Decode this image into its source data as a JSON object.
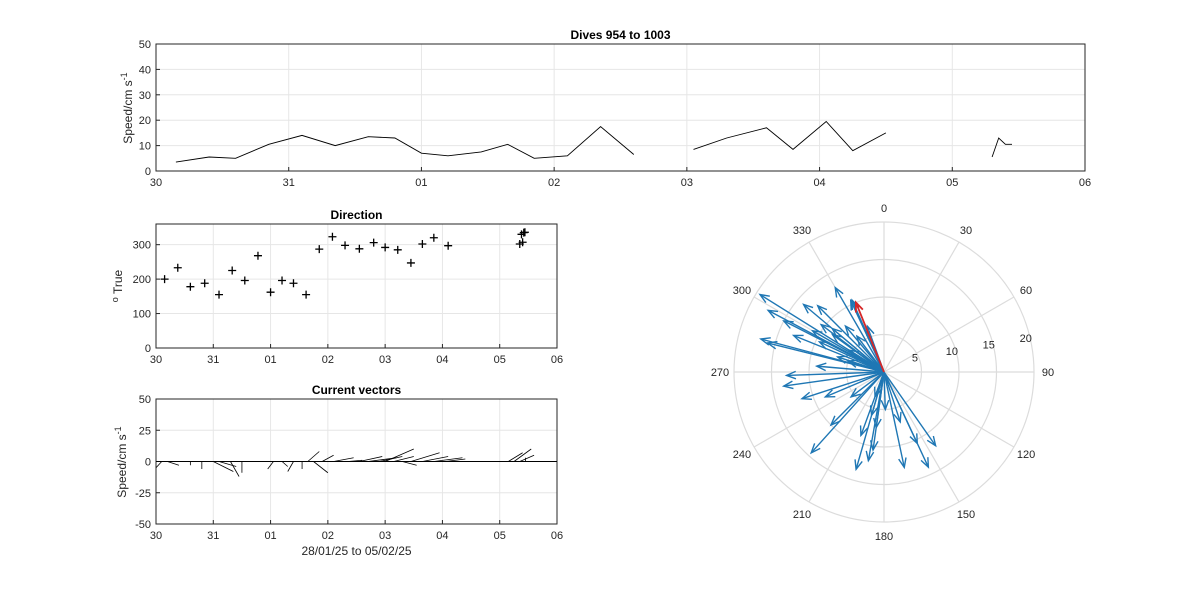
{
  "chart_data": [
    {
      "type": "line",
      "title": "Dives 954 to 1003",
      "xlabel": "",
      "ylabel": "Speed/cm s",
      "ylabel_superscript": "-1",
      "xlim": [
        0,
        7
      ],
      "ylim": [
        0,
        50
      ],
      "xticks": [
        0,
        1,
        2,
        3,
        4,
        5,
        6,
        7
      ],
      "xticklabels": [
        "30",
        "31",
        "01",
        "02",
        "03",
        "04",
        "05",
        "06"
      ],
      "yticks": [
        0,
        10,
        20,
        30,
        40,
        50
      ],
      "grid": true,
      "series": [
        {
          "color": "#000000",
          "segments": [
            [
              [
                0.15,
                3.5
              ],
              [
                0.4,
                5.5
              ],
              [
                0.6,
                5.0
              ],
              [
                0.85,
                10.5
              ],
              [
                1.1,
                14.0
              ],
              [
                1.35,
                10.0
              ],
              [
                1.6,
                13.5
              ],
              [
                1.8,
                13.0
              ],
              [
                2.0,
                7.0
              ],
              [
                2.2,
                6.0
              ],
              [
                2.45,
                7.5
              ],
              [
                2.65,
                10.5
              ],
              [
                2.85,
                5.0
              ],
              [
                3.1,
                6.0
              ],
              [
                3.35,
                17.5
              ],
              [
                3.6,
                6.5
              ]
            ],
            [
              [
                4.05,
                8.5
              ],
              [
                4.3,
                13.0
              ],
              [
                4.6,
                17.0
              ],
              [
                4.8,
                8.5
              ],
              [
                5.05,
                19.5
              ],
              [
                5.25,
                8.0
              ],
              [
                5.5,
                15.0
              ]
            ],
            [
              [
                6.3,
                5.5
              ],
              [
                6.35,
                13.0
              ],
              [
                6.4,
                10.5
              ],
              [
                6.45,
                10.5
              ]
            ]
          ]
        }
      ]
    },
    {
      "type": "scatter",
      "title": "Direction",
      "xlabel": "",
      "ylabel": "True",
      "ylabel_prefix": "o",
      "xlim": [
        0,
        7
      ],
      "ylim": [
        0,
        360
      ],
      "xticks": [
        0,
        1,
        2,
        3,
        4,
        5,
        6,
        7
      ],
      "xticklabels": [
        "30",
        "31",
        "01",
        "02",
        "03",
        "04",
        "05",
        "06"
      ],
      "yticks": [
        0,
        100,
        200,
        300
      ],
      "grid": true,
      "marker": "+",
      "points": [
        [
          0.15,
          200
        ],
        [
          0.38,
          233
        ],
        [
          0.6,
          178
        ],
        [
          0.85,
          188
        ],
        [
          1.1,
          155
        ],
        [
          1.33,
          225
        ],
        [
          1.55,
          196
        ],
        [
          1.78,
          268
        ],
        [
          2.0,
          162
        ],
        [
          2.2,
          196
        ],
        [
          2.4,
          188
        ],
        [
          2.62,
          155
        ],
        [
          2.85,
          287
        ],
        [
          3.08,
          323
        ],
        [
          3.3,
          298
        ],
        [
          3.55,
          288
        ],
        [
          3.8,
          306
        ],
        [
          4.0,
          292
        ],
        [
          4.22,
          285
        ],
        [
          4.45,
          247
        ],
        [
          4.65,
          302
        ],
        [
          4.85,
          320
        ],
        [
          5.1,
          297
        ],
        [
          6.35,
          302
        ],
        [
          6.38,
          330
        ],
        [
          6.4,
          307
        ],
        [
          6.42,
          335
        ],
        [
          6.44,
          336
        ]
      ]
    },
    {
      "type": "line",
      "subtype": "stick-plot",
      "title": "Current vectors",
      "xlabel": "28/01/25 to 05/02/25",
      "ylabel": "Speed/cm s",
      "ylabel_superscript": "-1",
      "xlim": [
        0,
        7
      ],
      "ylim": [
        -50,
        50
      ],
      "xticks": [
        0,
        1,
        2,
        3,
        4,
        5,
        6,
        7
      ],
      "xticklabels": [
        "30",
        "31",
        "01",
        "02",
        "03",
        "04",
        "05",
        "06"
      ],
      "yticks": [
        -50,
        -25,
        0,
        25,
        50
      ],
      "grid": true,
      "note_units": "each stick: start at (x,0), components [dx_days, dy_cms]",
      "sticks": [
        [
          0.1,
          -0.1,
          -5
        ],
        [
          0.2,
          0.2,
          -3
        ],
        [
          0.35,
          0.3,
          0
        ],
        [
          0.6,
          0.0,
          -3
        ],
        [
          0.8,
          0.0,
          -6
        ],
        [
          1.0,
          0.35,
          -8
        ],
        [
          1.1,
          0.3,
          -4
        ],
        [
          1.3,
          0.15,
          -12
        ],
        [
          1.5,
          0.0,
          -9
        ],
        [
          2.05,
          -0.1,
          -6
        ],
        [
          2.2,
          0.1,
          -4
        ],
        [
          2.4,
          -0.1,
          -8
        ],
        [
          2.55,
          0.0,
          -6
        ],
        [
          2.65,
          0.2,
          8
        ],
        [
          2.75,
          0.25,
          -9
        ],
        [
          2.9,
          0.2,
          5
        ],
        [
          3.1,
          0.35,
          3
        ],
        [
          3.35,
          0.25,
          1
        ],
        [
          3.55,
          0.4,
          4
        ],
        [
          3.7,
          0.5,
          3
        ],
        [
          3.9,
          0.4,
          4
        ],
        [
          4.0,
          0.5,
          10
        ],
        [
          4.15,
          0.35,
          4
        ],
        [
          4.3,
          0.25,
          -3
        ],
        [
          4.45,
          0.5,
          7
        ],
        [
          4.65,
          0.45,
          4
        ],
        [
          4.85,
          0.5,
          3
        ],
        [
          5.05,
          0.35,
          2
        ],
        [
          6.15,
          0.25,
          7
        ],
        [
          6.25,
          0.3,
          10
        ],
        [
          6.35,
          0.25,
          5
        ],
        [
          6.45,
          0.0,
          3
        ]
      ]
    },
    {
      "type": "polar",
      "subtype": "compass",
      "title": "",
      "rlim": [
        0,
        20
      ],
      "rticks": [
        5,
        10,
        15,
        20
      ],
      "thetaticks": [
        0,
        30,
        60,
        90,
        120,
        150,
        180,
        210,
        240,
        270,
        300,
        330
      ],
      "direction": "clockwise-from-north",
      "colors": {
        "vectors": "#1f77b4",
        "mean": "#d62728"
      },
      "vectors": [
        [
          200,
          3.5
        ],
        [
          233,
          5.5
        ],
        [
          178,
          5.0
        ],
        [
          188,
          10.5
        ],
        [
          155,
          14.0
        ],
        [
          225,
          10.0
        ],
        [
          196,
          13.5
        ],
        [
          268,
          13.0
        ],
        [
          162,
          7.0
        ],
        [
          196,
          6.0
        ],
        [
          188,
          7.5
        ],
        [
          155,
          10.5
        ],
        [
          287,
          5.0
        ],
        [
          323,
          6.0
        ],
        [
          298,
          17.5
        ],
        [
          288,
          6.5
        ],
        [
          306,
          8.5
        ],
        [
          292,
          13.0
        ],
        [
          285,
          17.0
        ],
        [
          247,
          8.5
        ],
        [
          302,
          19.5
        ],
        [
          320,
          8.0
        ],
        [
          297,
          15.0
        ],
        [
          302,
          5.5
        ],
        [
          330,
          13.0
        ],
        [
          307,
          10.5
        ],
        [
          335,
          10.5
        ],
        [
          336,
          10.5
        ],
        [
          252,
          11.5
        ],
        [
          222,
          14.5
        ],
        [
          168,
          13.0
        ],
        [
          145,
          12.0
        ],
        [
          190,
          12.0
        ],
        [
          284,
          16.0
        ],
        [
          310,
          14.0
        ],
        [
          315,
          12.5
        ],
        [
          275,
          9.0
        ],
        [
          262,
          13.5
        ],
        [
          300,
          11.0
        ],
        [
          295,
          9.5
        ],
        [
          310,
          9.0
        ],
        [
          340,
          6.5
        ],
        [
          200,
          9.0
        ]
      ],
      "mean_vector": [
        338,
        10.0
      ]
    }
  ]
}
